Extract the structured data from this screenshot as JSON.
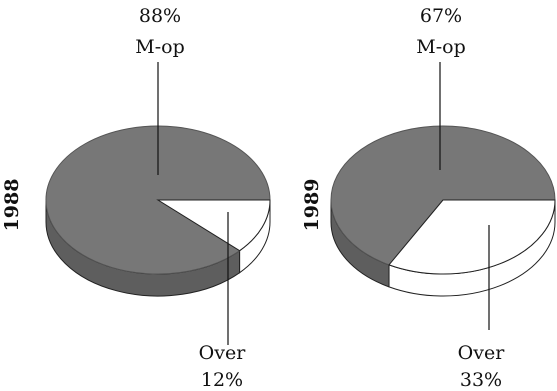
{
  "chart_data": [
    {
      "type": "pie",
      "title": "1988",
      "slices": [
        {
          "label": "M-op",
          "value": 88,
          "value_label": "88%",
          "color": "#777777"
        },
        {
          "label": "Over",
          "value": 12,
          "value_label": "12%",
          "color": "#ffffff"
        }
      ]
    },
    {
      "type": "pie",
      "title": "1989",
      "slices": [
        {
          "label": "M-op",
          "value": 67,
          "value_label": "67%",
          "color": "#777777"
        },
        {
          "label": "Over",
          "value": 33,
          "value_label": "33%",
          "color": "#ffffff"
        }
      ]
    }
  ]
}
